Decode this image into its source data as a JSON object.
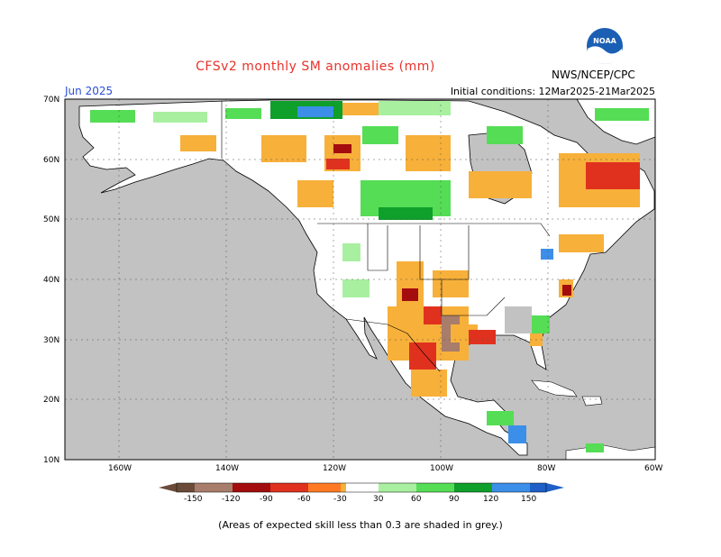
{
  "header": {
    "title": "CFSv2 monthly SM anomalies (mm)",
    "month": "Jun 2025",
    "initial_conditions": "Initial conditions: 12Mar2025-21Mar2025",
    "agency": "NWS/NCEP/CPC",
    "logo_text": "NOAA"
  },
  "map": {
    "lon_labels": [
      "160W",
      "140W",
      "120W",
      "100W",
      "80W",
      "60W"
    ],
    "lat_labels": [
      "70N",
      "60N",
      "50N",
      "40N",
      "30N",
      "20N",
      "10N"
    ]
  },
  "colorbar": {
    "labels": [
      "-150",
      "-120",
      "-90",
      "-60",
      "-30",
      "30",
      "60",
      "90",
      "120",
      "150"
    ],
    "colors": {
      "lt_m150": "#6b4a3a",
      "m150_m120": "#a87d6b",
      "m120_m90": "#a30d0d",
      "m90_m60": "#e0311f",
      "m60_m30": "#ff7a22",
      "m30_0": "#f7b03a",
      "neutral": "#ffffff",
      "p30_p60": "#a8f0a0",
      "p60_p90": "#55dd55",
      "p90_p120": "#0ea02a",
      "p120_p150": "#3c8fe8",
      "gt_p150": "#1e5fc9"
    }
  },
  "footnote": "(Areas of expected skill less than 0.3 are shaded in grey.)"
}
